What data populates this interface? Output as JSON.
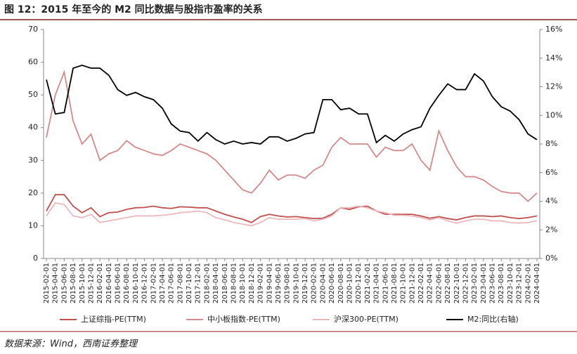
{
  "chart_data": {
    "type": "line",
    "title": "图 12：2015 年至今的 M2 同比数据与股指市盈率的关系",
    "source": "数据来源：Wind，西南证券整理",
    "categories": [
      "2015-02-01",
      "2015-04-01",
      "2015-06-01",
      "2015-08-01",
      "2015-10-01",
      "2015-12-01",
      "2016-02-01",
      "2016-04-01",
      "2016-06-01",
      "2016-08-01",
      "2016-10-01",
      "2016-12-01",
      "2017-02-01",
      "2017-04-01",
      "2017-06-01",
      "2017-08-01",
      "2017-10-01",
      "2017-12-01",
      "2018-02-01",
      "2018-04-01",
      "2018-06-01",
      "2018-08-01",
      "2018-10-01",
      "2018-12-01",
      "2019-02-01",
      "2019-04-01",
      "2019-06-01",
      "2019-08-01",
      "2019-10-01",
      "2019-12-01",
      "2020-02-01",
      "2020-04-01",
      "2020-06-01",
      "2020-08-01",
      "2020-10-01",
      "2020-12-01",
      "2021-02-01",
      "2021-04-01",
      "2021-06-01",
      "2021-08-01",
      "2021-10-01",
      "2021-12-01",
      "2022-02-01",
      "2022-04-01",
      "2022-06-01",
      "2022-08-01",
      "2022-10-01",
      "2022-12-01",
      "2023-02-01",
      "2023-04-01",
      "2023-06-01",
      "2023-08-01",
      "2023-10-01",
      "2023-12-01",
      "2024-02-01",
      "2024-04-01"
    ],
    "series": [
      {
        "name": "上证综指-PE(TTM)",
        "color": "#c0504d",
        "values": [
          14.5,
          19.5,
          19.5,
          16,
          14,
          15.5,
          12.8,
          14,
          14.2,
          15,
          15.5,
          15.6,
          16,
          15.5,
          15.3,
          15.8,
          15.7,
          15.5,
          15.5,
          14.5,
          13.5,
          12.7,
          12,
          11,
          12.8,
          13.5,
          13,
          12.7,
          12.8,
          12.5,
          12.2,
          12.3,
          13.5,
          15.5,
          15,
          15.8,
          16,
          14.5,
          13.5,
          13.5,
          13.5,
          13.5,
          13,
          12.3,
          12.8,
          12.2,
          11.8,
          12.5,
          13,
          13,
          12.8,
          13,
          12.5,
          12.2,
          12.5,
          13
        ]
      },
      {
        "name": "中小板指数-PE(TTM)",
        "color": "#d48a8a",
        "values": [
          37,
          50,
          57,
          42,
          35,
          38,
          30,
          32,
          33,
          36,
          34,
          33,
          32,
          31.5,
          33,
          35,
          34,
          33,
          32,
          30,
          27,
          24,
          21,
          20,
          23,
          27,
          24,
          25.5,
          25.5,
          24.5,
          27,
          28.5,
          34,
          37,
          35,
          35,
          35,
          31,
          34,
          33,
          33,
          35,
          30,
          27,
          39,
          33,
          28,
          25,
          25,
          24,
          22,
          20.5,
          20,
          20,
          17.5,
          20
        ]
      },
      {
        "name": "沪深300-PE(TTM)",
        "color": "#eab8bd",
        "values": [
          13,
          17,
          16.5,
          13,
          12.5,
          13.5,
          11,
          11.5,
          12,
          12.5,
          13,
          13,
          13,
          13.2,
          13.5,
          14,
          14.2,
          14.5,
          14,
          12.5,
          11.8,
          11,
          10.5,
          10,
          11,
          12.5,
          12,
          12,
          12,
          12.2,
          11.5,
          12,
          13,
          15.5,
          15.5,
          16,
          15.5,
          14.5,
          14,
          13.2,
          13.2,
          13,
          12.5,
          11.8,
          12.5,
          11.5,
          10.8,
          11.5,
          12,
          12,
          11.5,
          11.5,
          11,
          10.8,
          11,
          11.5
        ]
      },
      {
        "name": "M2:同比(右轴)",
        "color": "#000000",
        "axis": "y2",
        "values": [
          12.5,
          10.1,
          10.2,
          13.3,
          13.5,
          13.3,
          13.3,
          12.8,
          11.8,
          11.4,
          11.6,
          11.3,
          11.1,
          10.5,
          9.4,
          8.9,
          8.8,
          8.2,
          8.8,
          8.3,
          8.0,
          8.2,
          8.0,
          8.1,
          8.0,
          8.5,
          8.5,
          8.2,
          8.4,
          8.7,
          8.8,
          11.1,
          11.1,
          10.4,
          10.5,
          10.1,
          10.1,
          8.1,
          8.6,
          8.2,
          8.7,
          9.0,
          9.2,
          10.5,
          11.4,
          12.2,
          11.8,
          11.8,
          12.9,
          12.4,
          11.3,
          10.6,
          10.3,
          9.7,
          8.7,
          8.3
        ]
      }
    ],
    "ylim": [
      0,
      70
    ],
    "yticks": [
      0,
      10,
      20,
      30,
      40,
      50,
      60,
      70
    ],
    "y2lim": [
      0,
      16
    ],
    "y2ticks": [
      {
        "value": 0,
        "label": "0%"
      },
      {
        "value": 2,
        "label": "2%"
      },
      {
        "value": 4,
        "label": "4%"
      },
      {
        "value": 6,
        "label": "6%"
      },
      {
        "value": 8,
        "label": "8%"
      },
      {
        "value": 10,
        "label": "10%"
      },
      {
        "value": 12,
        "label": "12%"
      },
      {
        "value": 14,
        "label": "14%"
      },
      {
        "value": 16,
        "label": "16%"
      }
    ],
    "legend": "bottom"
  }
}
